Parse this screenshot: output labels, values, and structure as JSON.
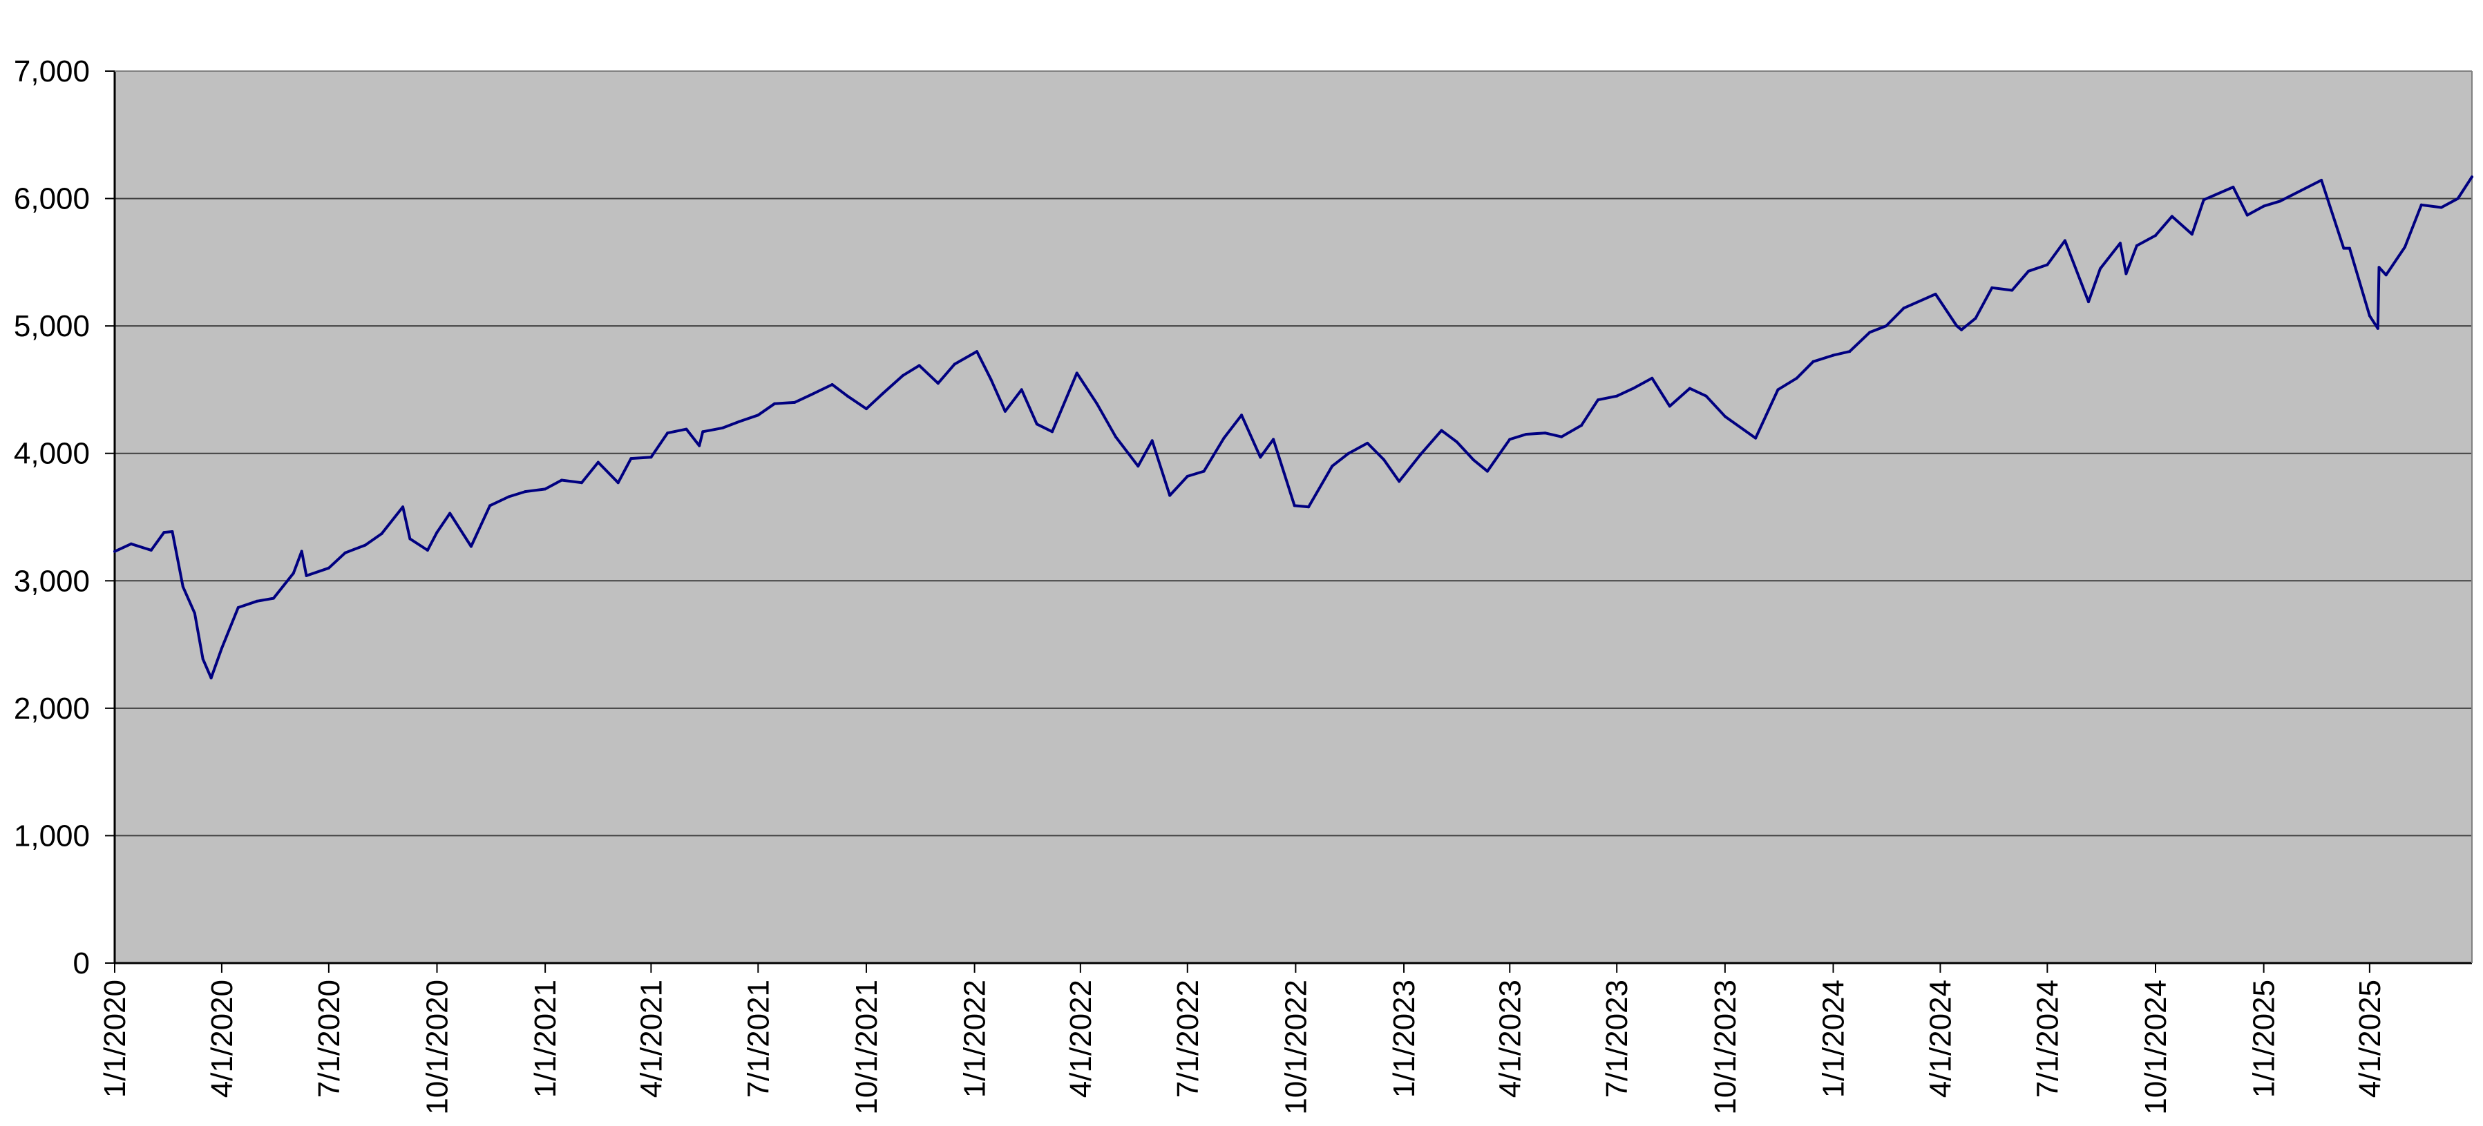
{
  "colors": {
    "plot_background": "#C0C0C0",
    "line": "#000080",
    "gridline": "#404040",
    "axis": "#000000",
    "page_background": "#FFFFFF"
  },
  "chart_data": {
    "type": "line",
    "title": "",
    "xlabel": "",
    "ylabel": "",
    "ylim": [
      0,
      7000
    ],
    "xlim": [
      "1/1/2020",
      "6/27/2025"
    ],
    "grid": "horizontal",
    "legend": "none",
    "y_ticks": [
      "0",
      "1,000",
      "2,000",
      "3,000",
      "4,000",
      "5,000",
      "6,000",
      "7,000"
    ],
    "x_ticks": [
      "1/1/2020",
      "4/1/2020",
      "7/1/2020",
      "10/1/2020",
      "1/1/2021",
      "4/1/2021",
      "7/1/2021",
      "10/1/2021",
      "1/1/2022",
      "4/1/2022",
      "7/1/2022",
      "10/1/2022",
      "1/1/2023",
      "4/1/2023",
      "7/1/2023",
      "10/1/2023",
      "1/1/2024",
      "4/1/2024",
      "7/1/2024",
      "10/1/2024",
      "1/1/2025",
      "4/1/2025"
    ],
    "series": [
      {
        "x": [
          "1/1/2020",
          "1/15/2020",
          "2/1/2020",
          "2/12/2020",
          "2/19/2020",
          "2/28/2020",
          "3/9/2020",
          "3/16/2020",
          "3/23/2020",
          "4/1/2020",
          "4/15/2020",
          "5/1/2020",
          "5/15/2020",
          "6/1/2020",
          "6/8/2020",
          "6/12/2020",
          "7/1/2020",
          "7/15/2020",
          "8/1/2020",
          "8/15/2020",
          "9/2/2020",
          "9/8/2020",
          "9/23/2020",
          "10/1/2020",
          "10/12/2020",
          "10/30/2020",
          "11/15/2020",
          "12/1/2020",
          "12/15/2020",
          "1/1/2021",
          "1/15/2021",
          "2/1/2021",
          "2/15/2021",
          "3/4/2021",
          "3/15/2021",
          "4/1/2021",
          "4/15/2021",
          "5/1/2021",
          "5/12/2021",
          "5/15/2021",
          "6/1/2021",
          "6/15/2021",
          "7/1/2021",
          "7/15/2021",
          "8/1/2021",
          "8/15/2021",
          "9/2/2021",
          "9/15/2021",
          "10/1/2021",
          "10/15/2021",
          "11/1/2021",
          "11/15/2021",
          "12/1/2021",
          "12/15/2021",
          "1/3/2022",
          "1/15/2022",
          "1/27/2022",
          "2/10/2022",
          "2/23/2022",
          "3/8/2022",
          "3/29/2022",
          "4/15/2022",
          "5/1/2022",
          "5/20/2022",
          "6/1/2022",
          "6/16/2022",
          "7/1/2022",
          "7/15/2022",
          "8/1/2022",
          "8/16/2022",
          "9/1/2022",
          "9/12/2022",
          "9/30/2022",
          "10/12/2022",
          "11/1/2022",
          "11/15/2022",
          "12/1/2022",
          "12/15/2022",
          "12/28/2022",
          "1/15/2023",
          "2/2/2023",
          "2/15/2023",
          "3/1/2023",
          "3/13/2023",
          "4/1/2023",
          "4/15/2023",
          "5/1/2023",
          "5/15/2023",
          "6/1/2023",
          "6/15/2023",
          "7/1/2023",
          "7/15/2023",
          "7/31/2023",
          "8/15/2023",
          "9/1/2023",
          "9/15/2023",
          "10/1/2023",
          "10/27/2023",
          "11/15/2023",
          "12/1/2023",
          "12/15/2023",
          "1/1/2024",
          "1/15/2024",
          "2/1/2024",
          "2/15/2024",
          "3/1/2024",
          "3/28/2024",
          "4/15/2024",
          "4/19/2024",
          "5/1/2024",
          "5/15/2024",
          "6/1/2024",
          "6/15/2024",
          "7/1/2024",
          "7/16/2024",
          "8/5/2024",
          "8/15/2024",
          "9/1/2024",
          "9/6/2024",
          "9/15/2024",
          "10/1/2024",
          "10/15/2024",
          "11/1/2024",
          "11/11/2024",
          "12/6/2024",
          "12/18/2024",
          "1/1/2025",
          "1/15/2025",
          "2/19/2025",
          "3/10/2025",
          "3/15/2025",
          "4/1/2025",
          "4/8/2025",
          "4/9/2025",
          "4/15/2025",
          "5/1/2025",
          "5/15/2025",
          "6/1/2025",
          "6/15/2025",
          "6/27/2025"
        ],
        "values": [
          3230,
          3290,
          3240,
          3380,
          3386,
          2954,
          2746,
          2386,
          2237,
          2470,
          2790,
          2840,
          2863,
          3060,
          3232,
          3040,
          3100,
          3220,
          3280,
          3370,
          3580,
          3330,
          3240,
          3380,
          3530,
          3270,
          3590,
          3660,
          3700,
          3720,
          3790,
          3770,
          3930,
          3770,
          3960,
          3970,
          4160,
          4190,
          4060,
          4170,
          4200,
          4250,
          4300,
          4390,
          4400,
          4460,
          4540,
          4450,
          4350,
          4470,
          4610,
          4690,
          4550,
          4700,
          4800,
          4580,
          4330,
          4500,
          4230,
          4170,
          4630,
          4390,
          4130,
          3900,
          4100,
          3670,
          3820,
          3860,
          4120,
          4300,
          3970,
          4110,
          3590,
          3580,
          3900,
          4000,
          4080,
          3950,
          3780,
          3990,
          4180,
          4090,
          3950,
          3860,
          4110,
          4150,
          4160,
          4130,
          4220,
          4420,
          4450,
          4510,
          4590,
          4370,
          4510,
          4450,
          4290,
          4120,
          4500,
          4590,
          4720,
          4770,
          4800,
          4950,
          5000,
          5140,
          5250,
          5000,
          4970,
          5060,
          5300,
          5280,
          5430,
          5480,
          5670,
          5190,
          5450,
          5650,
          5410,
          5630,
          5710,
          5860,
          5720,
          5990,
          6090,
          5870,
          5940,
          5980,
          6144,
          5610,
          5610,
          5080,
          4980,
          5460,
          5400,
          5620,
          5950,
          5930,
          6000,
          6170
        ]
      }
    ]
  }
}
